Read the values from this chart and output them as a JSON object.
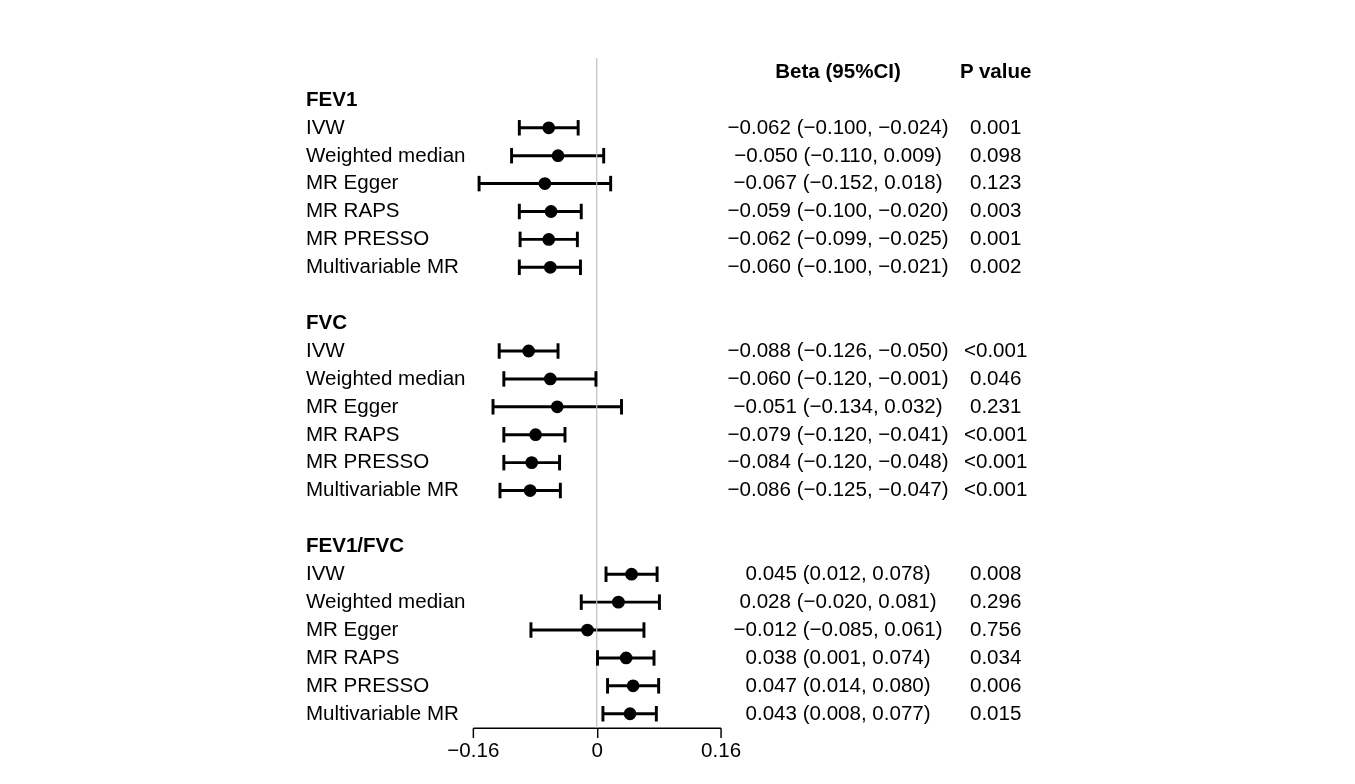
{
  "chart_data": {
    "type": "scatter",
    "orientation": "horizontal",
    "marker": "circle",
    "color": "#000000",
    "grid": false,
    "legend": false,
    "categories": [
      "FEV1",
      "IVW",
      "Weighted median",
      "MR Egger",
      "MR RAPS",
      "MR PRESSO",
      "Multivariable MR",
      null,
      "FVC",
      "IVW",
      "Weighted median",
      "MR Egger",
      "MR RAPS",
      "MR PRESSO",
      "Multivariable MR",
      null,
      "FEV1/FVC",
      "IVW",
      "Weighted median",
      "MR Egger",
      "MR RAPS",
      "MR PRESSO",
      "Multivariable MR"
    ],
    "values": [
      null,
      -0.062,
      -0.05,
      -0.067,
      -0.059,
      -0.062,
      -0.06,
      null,
      null,
      -0.088,
      -0.06,
      -0.051,
      -0.079,
      -0.084,
      -0.086,
      null,
      null,
      0.045,
      0.028,
      -0.012,
      0.038,
      0.047,
      0.043
    ],
    "errors": [
      null,
      [
        -0.1,
        -0.024
      ],
      [
        -0.11,
        0.009
      ],
      [
        -0.152,
        0.018
      ],
      [
        -0.1,
        -0.02
      ],
      [
        -0.099,
        -0.025
      ],
      [
        -0.1,
        -0.021
      ],
      null,
      null,
      [
        -0.126,
        -0.05
      ],
      [
        -0.12,
        -0.001
      ],
      [
        -0.134,
        0.032
      ],
      [
        -0.12,
        -0.041
      ],
      [
        -0.12,
        -0.048
      ],
      [
        -0.125,
        -0.047
      ],
      null,
      null,
      [
        0.012,
        0.078
      ],
      [
        -0.02,
        0.081
      ],
      [
        -0.085,
        0.061
      ],
      [
        0.001,
        0.074
      ],
      [
        0.014,
        0.08
      ],
      [
        0.008,
        0.077
      ]
    ],
    "annotations": [
      "Beta (95%CI)",
      "P value",
      "−0.062 (−0.100, −0.024)",
      "−0.050 (−0.110, 0.009)",
      "−0.067 (−0.152, 0.018)",
      "−0.059 (−0.100, −0.020)",
      "−0.062 (−0.099, −0.025)",
      "−0.060 (−0.100, −0.021)",
      "−0.088 (−0.126, −0.050)",
      "−0.060 (−0.120, −0.001)",
      "−0.051 (−0.134, 0.032)",
      "−0.079 (−0.120, −0.041)",
      "−0.084 (−0.120, −0.048)",
      "−0.086 (−0.125, −0.047)",
      "0.045 (0.012, 0.078)",
      "0.028 (−0.020, 0.081)",
      "−0.012 (−0.085, 0.061)",
      "0.038 (0.001, 0.074)",
      "0.047 (0.014, 0.080)",
      "0.043 (0.008, 0.077)",
      "0.001",
      "0.098",
      "0.123",
      "0.003",
      "0.001",
      "0.002",
      "<0.001",
      "0.046",
      "0.231",
      "<0.001",
      "<0.001",
      "<0.001",
      "0.008",
      "0.296",
      "0.756",
      "0.034",
      "0.006",
      "0.015"
    ],
    "xlim": [
      -0.16,
      0.16
    ],
    "xticks": [
      -0.16,
      0,
      0.16
    ],
    "ref_lines": [
      {
        "axis": "x",
        "value": 0,
        "color": "#bfbfbf"
      }
    ]
  }
}
